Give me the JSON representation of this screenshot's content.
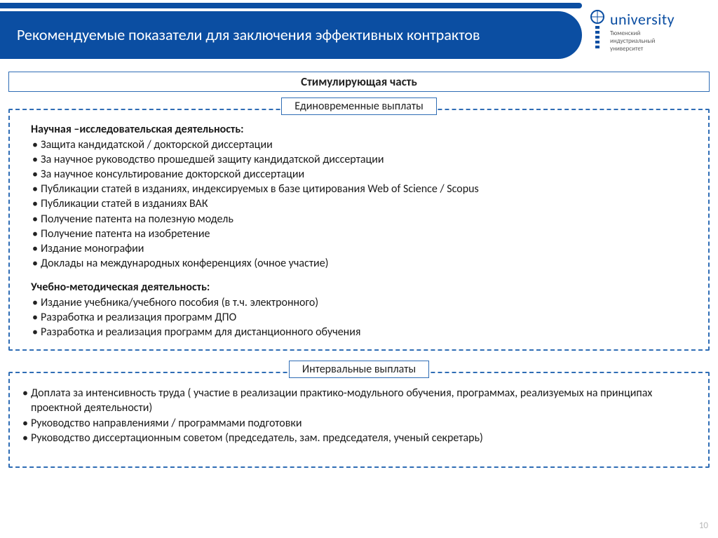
{
  "header": {
    "title": "Рекомендуемые показатели для заключения эффективных контрактов",
    "logo_word": "university",
    "logo_sub": "Тюменский\nиндустриальный\nуниверситет"
  },
  "section_top": "Стимулирующая часть",
  "section1": {
    "label": "Единовременные выплаты",
    "group1_title": "Научная –исследовательская деятельность:",
    "group1_items": [
      "Защита кандидатской / докторской диссертации",
      "За научное руководство прошедшей защиту кандидатской диссертации",
      "За научное консультирование докторской диссертации",
      "Публикации статей в изданиях, индексируемых в базе цитирования Web of Science / Scopus",
      "Публикации статей в изданиях ВАК",
      "Получение патента на полезную модель",
      "Получение патента на изобретение",
      "Издание монографии",
      "Доклады на международных конференциях (очное участие)"
    ],
    "group2_title": "Учебно-методическая деятельность:",
    "group2_items": [
      "Издание  учебника/учебного пособия (в т.ч. электронного)",
      "Разработка и реализация программ ДПО",
      "Разработка и реализация программ для дистанционного обучения"
    ]
  },
  "section2": {
    "label": "Интервальные выплаты",
    "items": [
      "Доплата за интенсивность труда ( участие в реализации практико-модульного обучения, программах, реализуемых на принципах проектной деятельности)",
      "Руководство направлениями / программами подготовки",
      "Руководство диссертационным советом (председатель, зам. председателя, ученый секретарь)"
    ]
  },
  "page_number": "10",
  "colors": {
    "brand_blue": "#0b4ea2",
    "border_blue": "#2f6db5",
    "text": "#1a1a1a",
    "pagenum": "#b9b9b9"
  }
}
